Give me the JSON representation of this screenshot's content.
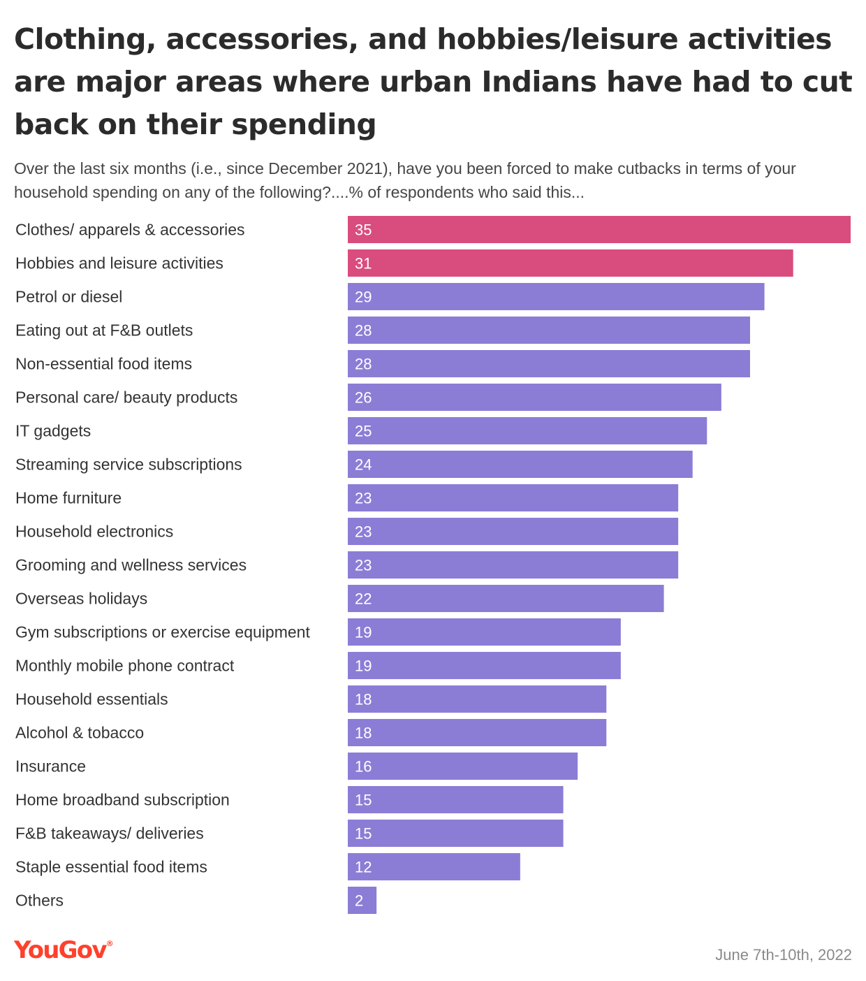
{
  "title": "Clothing, accessories, and hobbies/leisure activities are major areas where urban Indians have had to cut back on their spending",
  "subtitle": "Over the last six months (i.e., since December 2021), have you been forced to make cutbacks in terms of your household spending on any of the following?....% of respondents who said this...",
  "brand": "YouGov",
  "date_label": "June 7th-10th, 2022",
  "colors": {
    "highlight": "#d94c7e",
    "default": "#8b7dd6",
    "brand": "#ff412c"
  },
  "chart_data": {
    "type": "bar",
    "orientation": "horizontal",
    "categories": [
      "Clothes/ apparels & accessories",
      "Hobbies and leisure activities",
      "Petrol or diesel",
      "Eating out at F&B outlets",
      "Non-essential food items",
      "Personal care/ beauty products",
      "IT gadgets",
      "Streaming service subscriptions",
      "Home furniture",
      "Household electronics",
      "Grooming and wellness services",
      "Overseas holidays",
      "Gym subscriptions or exercise equipment",
      "Monthly mobile phone contract",
      "Household essentials",
      "Alcohol & tobacco",
      "Insurance",
      "Home broadband subscription",
      "F&B takeaways/ deliveries",
      "Staple essential food items",
      "Others"
    ],
    "values": [
      35,
      31,
      29,
      28,
      28,
      26,
      25,
      24,
      23,
      23,
      23,
      22,
      19,
      19,
      18,
      18,
      16,
      15,
      15,
      12,
      2
    ],
    "highlighted": [
      true,
      true,
      false,
      false,
      false,
      false,
      false,
      false,
      false,
      false,
      false,
      false,
      false,
      false,
      false,
      false,
      false,
      false,
      false,
      false,
      false
    ],
    "xlim": [
      0,
      35
    ],
    "grid": false,
    "axis_visible": false,
    "data_labels": "inside-left"
  }
}
